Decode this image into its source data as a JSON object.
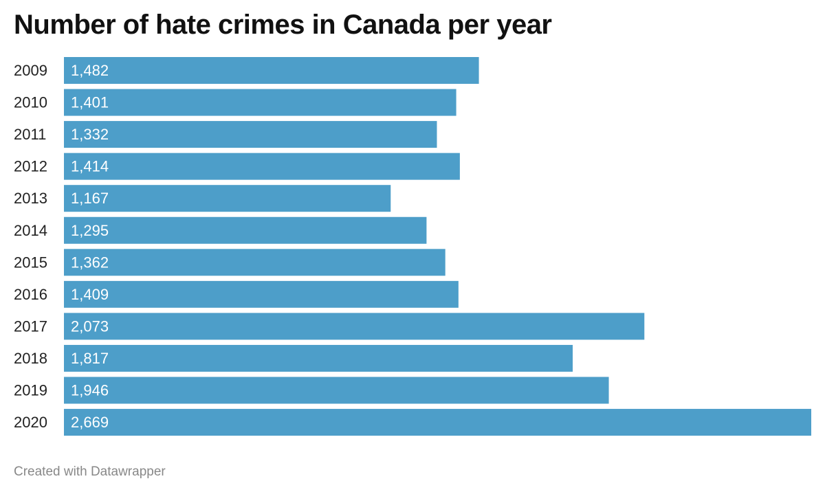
{
  "chart_data": {
    "type": "bar",
    "orientation": "horizontal",
    "title": "Number of hate crimes in Canada per year",
    "categories": [
      "2009",
      "2010",
      "2011",
      "2012",
      "2013",
      "2014",
      "2015",
      "2016",
      "2017",
      "2018",
      "2019",
      "2020"
    ],
    "values": [
      1482,
      1401,
      1332,
      1414,
      1167,
      1295,
      1362,
      1409,
      2073,
      1817,
      1946,
      2669
    ],
    "value_labels": [
      "1,482",
      "1,401",
      "1,332",
      "1,414",
      "1,167",
      "1,295",
      "1,362",
      "1,409",
      "2,073",
      "1,817",
      "1,946",
      "2,669"
    ],
    "xlim": [
      0,
      2669
    ],
    "grid": false,
    "bar_color": "#4d9ec9",
    "label_color": "#ffffff"
  },
  "footer": {
    "credit": "Created with Datawrapper"
  }
}
